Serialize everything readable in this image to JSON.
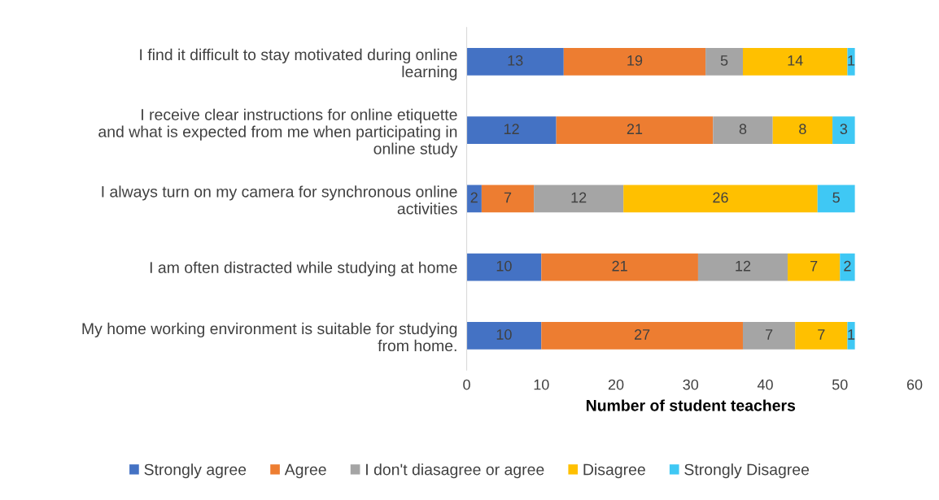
{
  "chart_data": {
    "type": "bar",
    "orientation": "horizontal",
    "stacked": true,
    "xlabel": "Number of student teachers",
    "categories": [
      "I find it difficult to stay motivated during online learning",
      "I receive clear instructions for online etiquette and what is expected from me when participating in online study",
      "I always turn on my camera for synchronous online activities",
      "I am often distracted while studying at home",
      "My home working environment is suitable for studying from home."
    ],
    "series": [
      {
        "name": "Strongly agree",
        "color": "#4472c4",
        "values": [
          13,
          12,
          2,
          10,
          10
        ]
      },
      {
        "name": "Agree",
        "color": "#ed7d31",
        "values": [
          19,
          21,
          7,
          21,
          27
        ]
      },
      {
        "name": "I don't diasagree or agree",
        "color": "#a5a5a5",
        "values": [
          5,
          8,
          12,
          12,
          7
        ]
      },
      {
        "name": "Disagree",
        "color": "#ffc000",
        "values": [
          14,
          8,
          26,
          7,
          7
        ]
      },
      {
        "name": "Strongly Disagree",
        "color": "#3fc8f4",
        "values": [
          1,
          3,
          5,
          2,
          1
        ]
      }
    ],
    "xlim": [
      0,
      60
    ],
    "xticks": [
      0,
      10,
      20,
      30,
      40,
      50,
      60
    ],
    "data_labels": true,
    "grid": false,
    "legend": "bottom"
  }
}
